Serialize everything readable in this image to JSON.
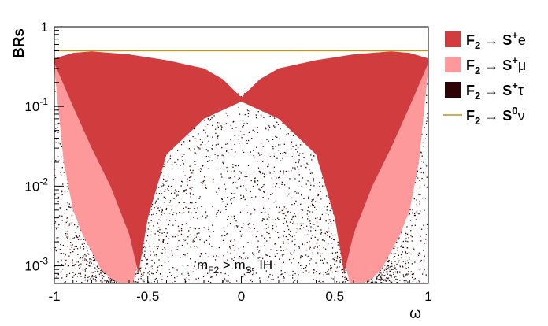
{
  "chart_data": {
    "type": "scatter",
    "title": "",
    "xlabel": "ω",
    "ylabel": "BRs",
    "xlim": [
      -1,
      1
    ],
    "ylim": [
      0.0006,
      1
    ],
    "y_scale": "log",
    "grid": false,
    "annotation": {
      "text": "m_F2 > m_S, IH",
      "x": 0.05,
      "y": 0.001
    },
    "x_ticks": [
      {
        "value": -1,
        "label": "-1"
      },
      {
        "value": -0.5,
        "label": "-0.5"
      },
      {
        "value": 0,
        "label": "0"
      },
      {
        "value": 0.5,
        "label": "0.5"
      },
      {
        "value": 1,
        "label": "1"
      }
    ],
    "y_ticks": [
      {
        "value": 1,
        "label": "1",
        "exp": ""
      },
      {
        "value": 0.1,
        "label": "10",
        "exp": "-1"
      },
      {
        "value": 0.01,
        "label": "10",
        "exp": "-2"
      },
      {
        "value": 0.001,
        "label": "10",
        "exp": "-3"
      }
    ],
    "legend": {
      "position": "right",
      "entries": [
        {
          "name": "F2 → S+e",
          "base": "F",
          "sub": "2",
          "arrow": " → S",
          "sup": "+",
          "tail": "e",
          "color": "#d13c3e",
          "kind": "box"
        },
        {
          "name": "F2 → S+μ",
          "base": "F",
          "sub": "2",
          "arrow": " → S",
          "sup": "+",
          "tail": "μ",
          "color": "#fd999a",
          "kind": "box"
        },
        {
          "name": "F2 → S+τ",
          "base": "F",
          "sub": "2",
          "arrow": " → S",
          "sup": "+",
          "tail": "τ",
          "color": "#2c0404",
          "kind": "box"
        },
        {
          "name": "F2 → S0ν",
          "base": "F",
          "sub": "2",
          "arrow": " → S",
          "sup": "0",
          "tail": "ν",
          "color": "#c89215",
          "kind": "line"
        }
      ]
    },
    "series": [
      {
        "name": "F2 → S+e",
        "color": "#d13c3e",
        "upper": {
          "x": [
            -1,
            -0.9,
            -0.8,
            -0.6,
            -0.4,
            -0.2,
            -0.1,
            0,
            0.1,
            0.2,
            0.4,
            0.6,
            0.8,
            0.9,
            1
          ],
          "y": [
            0.4,
            0.47,
            0.49,
            0.45,
            0.38,
            0.3,
            0.22,
            0.13,
            0.22,
            0.3,
            0.38,
            0.45,
            0.49,
            0.47,
            0.4
          ]
        },
        "lower": {
          "x": [
            -1,
            -0.9,
            -0.8,
            -0.7,
            -0.6,
            -0.55,
            -0.5,
            -0.4,
            -0.2,
            0,
            0.2,
            0.4,
            0.5,
            0.55,
            0.6,
            0.7,
            0.8,
            0.9,
            1
          ],
          "y": [
            0.35,
            0.1,
            0.03,
            0.01,
            0.0025,
            0.0008,
            0.004,
            0.025,
            0.07,
            0.115,
            0.07,
            0.025,
            0.004,
            0.0008,
            0.0025,
            0.01,
            0.03,
            0.1,
            0.35
          ]
        }
      },
      {
        "name": "F2 → S+μ",
        "color": "#fd999a",
        "upper": {
          "x": [
            -1,
            -0.9,
            -0.8,
            -0.6,
            -0.4,
            -0.2,
            -0.1,
            0,
            0.1,
            0.2,
            0.4,
            0.6,
            0.8,
            0.9,
            1
          ],
          "y": [
            0.4,
            0.47,
            0.49,
            0.45,
            0.38,
            0.3,
            0.22,
            0.13,
            0.22,
            0.3,
            0.38,
            0.45,
            0.49,
            0.47,
            0.4
          ]
        },
        "lower": {
          "x": [
            -1,
            -0.95,
            -0.9,
            -0.85,
            -0.8,
            -0.75,
            -0.7,
            -0.65,
            -0.6,
            -0.58,
            -0.5,
            -0.4,
            -0.2,
            -0.1,
            0,
            0.1,
            0.2,
            0.4,
            0.5,
            0.58,
            0.6,
            0.65,
            0.7,
            0.75,
            0.8,
            0.85,
            0.9,
            0.95,
            1
          ],
          "y": [
            0.3,
            0.02,
            0.005,
            0.0025,
            0.0015,
            0.0009,
            0.0007,
            0.0006,
            0.0006,
            0.0006,
            0.004,
            0.025,
            0.07,
            0.1,
            0.115,
            0.1,
            0.07,
            0.025,
            0.004,
            0.0006,
            0.0006,
            0.0006,
            0.0007,
            0.0009,
            0.0015,
            0.0025,
            0.005,
            0.02,
            0.3
          ]
        }
      },
      {
        "name": "F2 → S+τ",
        "color": "#2c0404",
        "x_range": [
          -1,
          1
        ],
        "y_range": [
          0.0006,
          0.3
        ]
      },
      {
        "name": "F2 → S0ν",
        "color": "#c89215",
        "x": [
          -1,
          1
        ],
        "y": [
          0.5,
          0.5
        ]
      }
    ]
  }
}
